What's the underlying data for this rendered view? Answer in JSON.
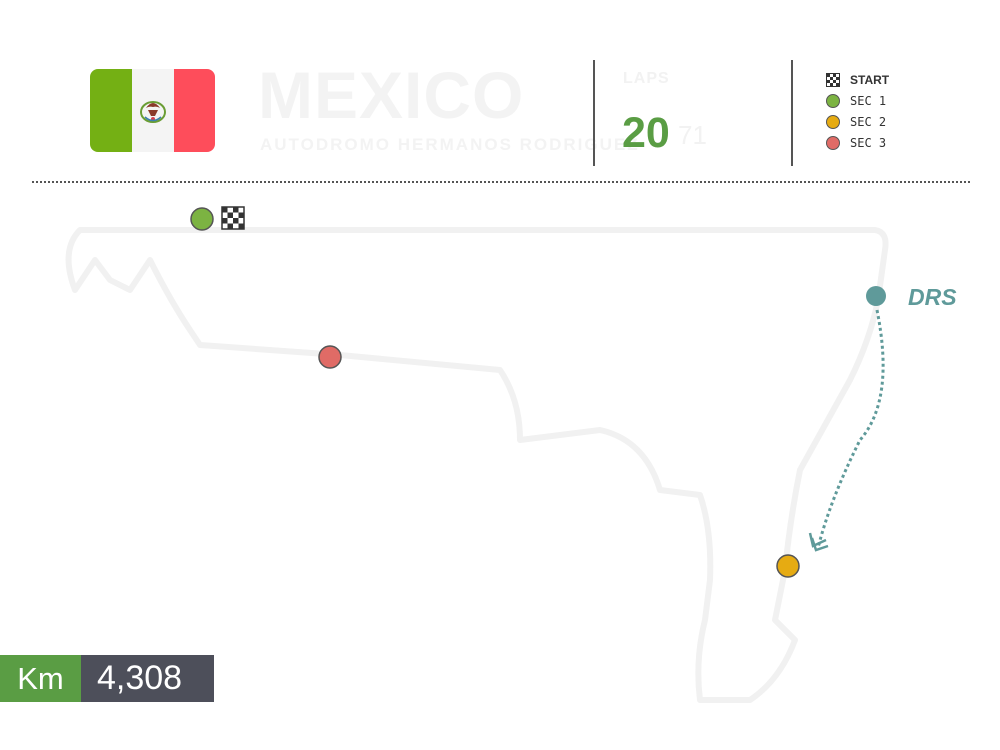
{
  "header": {
    "country": "MEXICO",
    "circuit": "AUTODROMO HERMANOS RODRIGUEZ",
    "laps_label": "LAPS",
    "laps_value": "20",
    "laps_unit": "71"
  },
  "legend": {
    "items": [
      {
        "label": "START",
        "icon": "checkered-flag-icon"
      },
      {
        "label": "SEC 1",
        "color": "#7cb342"
      },
      {
        "label": "SEC 2",
        "color": "#e6ab12"
      },
      {
        "label": "SEC 3",
        "color": "#e06b66"
      }
    ]
  },
  "track": {
    "drs_label": "DRS",
    "drs_color": "#5f9a9a"
  },
  "length": {
    "unit": "Km",
    "value": "4,308"
  },
  "colors": {
    "green": "#5a9d44",
    "dark": "#4d4f5a",
    "flag_green": "#74b014",
    "flag_red": "#fe4d5b"
  }
}
